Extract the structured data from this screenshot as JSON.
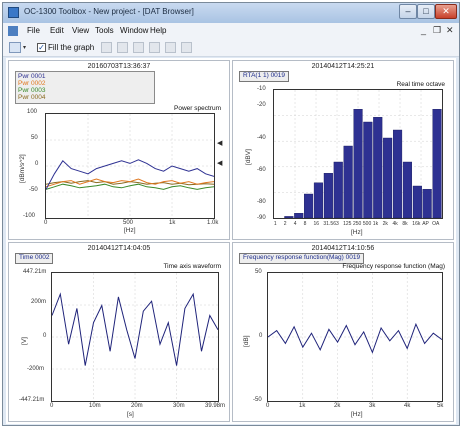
{
  "titlebar": {
    "title": "OC-1300 Toolbox - New project - [DAT Browser]",
    "minimize": "–",
    "maximize": "□",
    "close": "✕"
  },
  "menu": {
    "items": [
      "File",
      "Edit",
      "View",
      "Tools",
      "Window",
      "Help"
    ],
    "mdi_min": "_",
    "mdi_restore": "❐",
    "mdi_close": "✕"
  },
  "toolbar": {
    "fill_graph_label": "Fill the graph",
    "fill_checked": "✓"
  },
  "colors": {
    "navy": "#1f237a",
    "bar": "#2e3192",
    "pwr1": "#2e3192",
    "pwr2": "#e07820",
    "pwr3": "#3a8a2a",
    "pwr4": "#8a6a20"
  },
  "panels": {
    "power": {
      "timestamp": "20160703T13:36:37",
      "legend": [
        {
          "name": "Pwr 0001",
          "color": "#2e3192"
        },
        {
          "name": "Pwr 0002",
          "color": "#e07820"
        },
        {
          "name": "Pwr 0003",
          "color": "#3a8a2a"
        },
        {
          "name": "Pwr 0004",
          "color": "#8a6a20"
        }
      ],
      "title": "Power spectrum",
      "ylabel": "[dBm/s^2]",
      "xlabel": "[Hz]",
      "yticks": [
        "100",
        "50",
        "0",
        "-50",
        "-100"
      ],
      "xticks": [
        "0",
        "500",
        "1k",
        "1.0k"
      ],
      "markers": [
        "◀",
        "◀"
      ]
    },
    "rta": {
      "timestamp": "20140412T14:25:21",
      "tag": "RTA(1 1) 0019",
      "title": "Real time octave",
      "ylabel": "[dBV]",
      "xlabel": "[Hz]",
      "yticks": [
        "-10",
        "-20",
        "-40",
        "-60",
        "-80",
        "-90"
      ],
      "xticks": [
        "1",
        "2",
        "4",
        "8",
        "16",
        "31.5",
        "63",
        "125",
        "250",
        "500",
        "1k",
        "2k",
        "4k",
        "8k",
        "16k",
        "AP",
        "OA"
      ]
    },
    "time": {
      "timestamp": "20140412T14:04:05",
      "tag": "Time 0002",
      "title": "Time axis waveform",
      "ylabel": "[V]",
      "xlabel": "[s]",
      "yticks": [
        "447.21m",
        "200m",
        "0",
        "-200m",
        "-447.21m"
      ],
      "xticks": [
        "0",
        "10m",
        "20m",
        "30m",
        "39.98m"
      ]
    },
    "freq": {
      "timestamp": "20140412T14:10:56",
      "tag": "Frequency response function(Mag) 0019",
      "title": "Frequency response function (Mag)",
      "ylabel": "[dB]",
      "xlabel": "[Hz]",
      "yticks": [
        "50",
        "0",
        "-50"
      ],
      "xticks": [
        "0",
        "1k",
        "2k",
        "3k",
        "4k",
        "5k"
      ]
    }
  },
  "chart_data": [
    {
      "type": "line",
      "title": "Power spectrum",
      "ylabel": "[dBm/s^2]",
      "xlabel": "[Hz]",
      "xlim": [
        0,
        1000
      ],
      "ylim": [
        -100,
        100
      ],
      "x": [
        0,
        50,
        100,
        150,
        200,
        250,
        300,
        350,
        400,
        450,
        500,
        550,
        600,
        650,
        700,
        750,
        800,
        850,
        900,
        950,
        1000
      ],
      "series": [
        {
          "name": "Pwr 0001",
          "values": [
            -45,
            -15,
            10,
            -5,
            -10,
            -15,
            -5,
            0,
            5,
            10,
            5,
            12,
            5,
            -5,
            -10,
            0,
            -5,
            -10,
            -5,
            -15,
            -20
          ]
        },
        {
          "name": "Pwr 0002",
          "values": [
            -40,
            -35,
            -30,
            -28,
            -35,
            -30,
            -25,
            -30,
            -32,
            -28,
            -30,
            -25,
            -32,
            -35,
            -30,
            -28,
            -33,
            -30,
            -35,
            -32,
            -30
          ]
        },
        {
          "name": "Pwr 0003",
          "values": [
            -45,
            -40,
            -35,
            -38,
            -42,
            -40,
            -38,
            -35,
            -40,
            -42,
            -38,
            -35,
            -40,
            -42,
            -45,
            -40,
            -38,
            -42,
            -45,
            -42,
            -40
          ]
        },
        {
          "name": "Pwr 0004",
          "values": [
            -35,
            -32,
            -30,
            -33,
            -30,
            -28,
            -32,
            -30,
            -35,
            -33,
            -30,
            -32,
            -35,
            -33,
            -32,
            -35,
            -33,
            -36,
            -35,
            -34,
            -35
          ]
        }
      ]
    },
    {
      "type": "bar",
      "title": "Real time octave",
      "ylabel": "[dBV]",
      "xlabel": "[Hz]",
      "ylim": [
        -90,
        -10
      ],
      "categories": [
        "1",
        "2",
        "4",
        "8",
        "16",
        "31.5",
        "63",
        "125",
        "250",
        "500",
        "1k",
        "2k",
        "4k",
        "8k",
        "16k",
        "AP",
        "OA"
      ],
      "values": [
        -90,
        -89,
        -87,
        -75,
        -68,
        -62,
        -55,
        -45,
        -22,
        -30,
        -27,
        -40,
        -35,
        -55,
        -70,
        -72,
        -22
      ]
    },
    {
      "type": "line",
      "title": "Time axis waveform",
      "ylabel": "[V]",
      "xlabel": "[s]",
      "xlim": [
        0,
        0.03998
      ],
      "ylim": [
        -0.44721,
        0.44721
      ],
      "x": [
        0,
        0.002,
        0.004,
        0.006,
        0.008,
        0.01,
        0.012,
        0.014,
        0.016,
        0.018,
        0.02,
        0.022,
        0.024,
        0.026,
        0.028,
        0.03,
        0.032,
        0.034,
        0.036,
        0.038,
        0.03998
      ],
      "values": [
        0.15,
        0.3,
        -0.05,
        0.2,
        -0.2,
        0.1,
        0.22,
        -0.1,
        0.28,
        0.05,
        -0.15,
        0.18,
        0.25,
        -0.05,
        0.1,
        -0.2,
        0.2,
        0.3,
        -0.1,
        0.15,
        0.05
      ]
    },
    {
      "type": "line",
      "title": "Frequency response function (Mag)",
      "ylabel": "[dB]",
      "xlabel": "[Hz]",
      "xlim": [
        0,
        5000
      ],
      "ylim": [
        -50,
        50
      ],
      "x": [
        0,
        250,
        500,
        750,
        1000,
        1250,
        1500,
        1750,
        2000,
        2250,
        2500,
        2750,
        3000,
        3250,
        3500,
        3750,
        4000,
        4250,
        4500,
        4750,
        5000
      ],
      "values": [
        0,
        5,
        -5,
        8,
        -8,
        3,
        -10,
        6,
        -4,
        9,
        -6,
        4,
        -12,
        7,
        -3,
        5,
        -9,
        10,
        -5,
        3,
        -2
      ]
    }
  ]
}
